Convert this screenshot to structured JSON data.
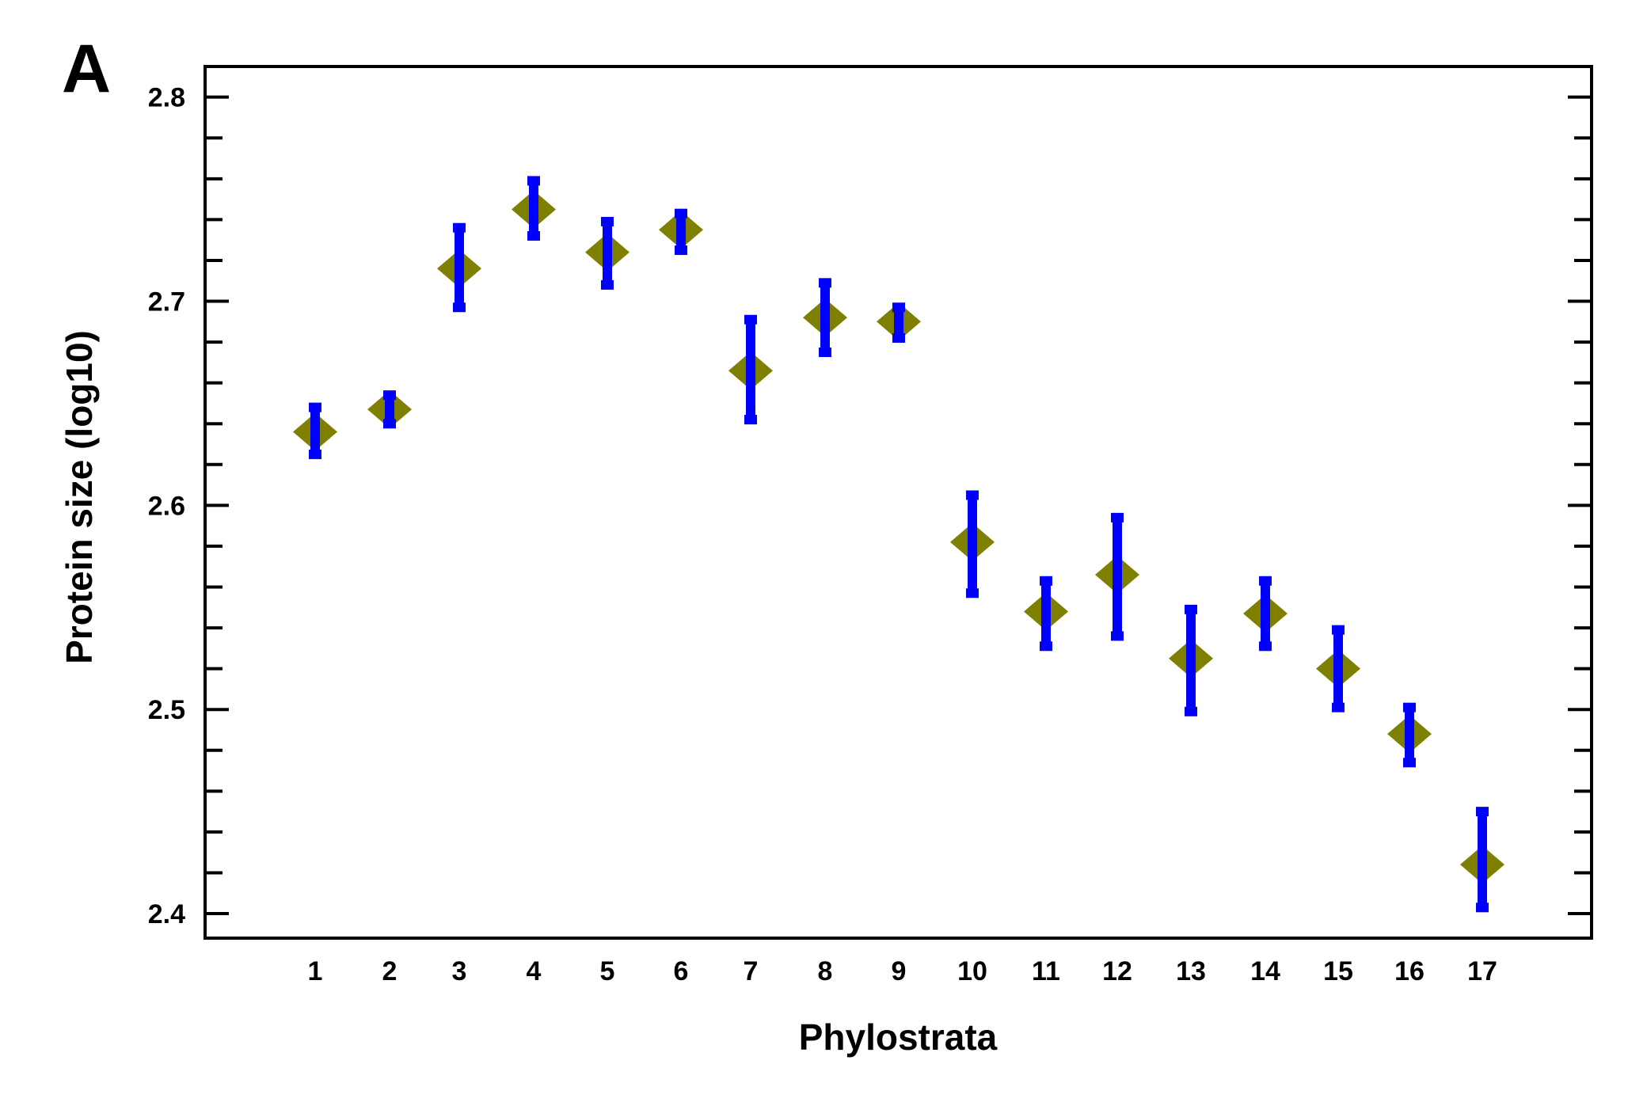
{
  "panel_label": "A",
  "colors": {
    "marker": "#808000",
    "error_bar": "#0000ff",
    "axis": "#000000",
    "background": "#ffffff"
  },
  "chart_data": {
    "type": "scatter",
    "marker_shape": "diamond",
    "error_bars": true,
    "title": "",
    "xlabel": "Phylostrata",
    "ylabel": "Protein size (log10)",
    "categories": [
      "1",
      "2",
      "3",
      "4",
      "5",
      "6",
      "7",
      "8",
      "9",
      "10",
      "11",
      "12",
      "13",
      "14",
      "15",
      "16",
      "17"
    ],
    "values": [
      2.636,
      2.647,
      2.716,
      2.745,
      2.724,
      2.735,
      2.666,
      2.692,
      2.69,
      2.582,
      2.548,
      2.566,
      2.525,
      2.547,
      2.52,
      2.488,
      2.424
    ],
    "error_low": [
      2.625,
      2.64,
      2.697,
      2.732,
      2.708,
      2.725,
      2.642,
      2.675,
      2.682,
      2.557,
      2.531,
      2.536,
      2.499,
      2.531,
      2.501,
      2.474,
      2.403
    ],
    "error_high": [
      2.648,
      2.654,
      2.736,
      2.759,
      2.739,
      2.743,
      2.691,
      2.709,
      2.697,
      2.605,
      2.563,
      2.594,
      2.549,
      2.563,
      2.539,
      2.501,
      2.45
    ],
    "ylim": [
      2.388,
      2.815
    ],
    "yticks": [
      2.4,
      2.5,
      2.6,
      2.7,
      2.8
    ],
    "ytick_labels": [
      "2.4",
      "2.5",
      "2.6",
      "2.7",
      "2.8"
    ],
    "y_minor_step": 0.02,
    "grid": false,
    "legend": "none"
  }
}
